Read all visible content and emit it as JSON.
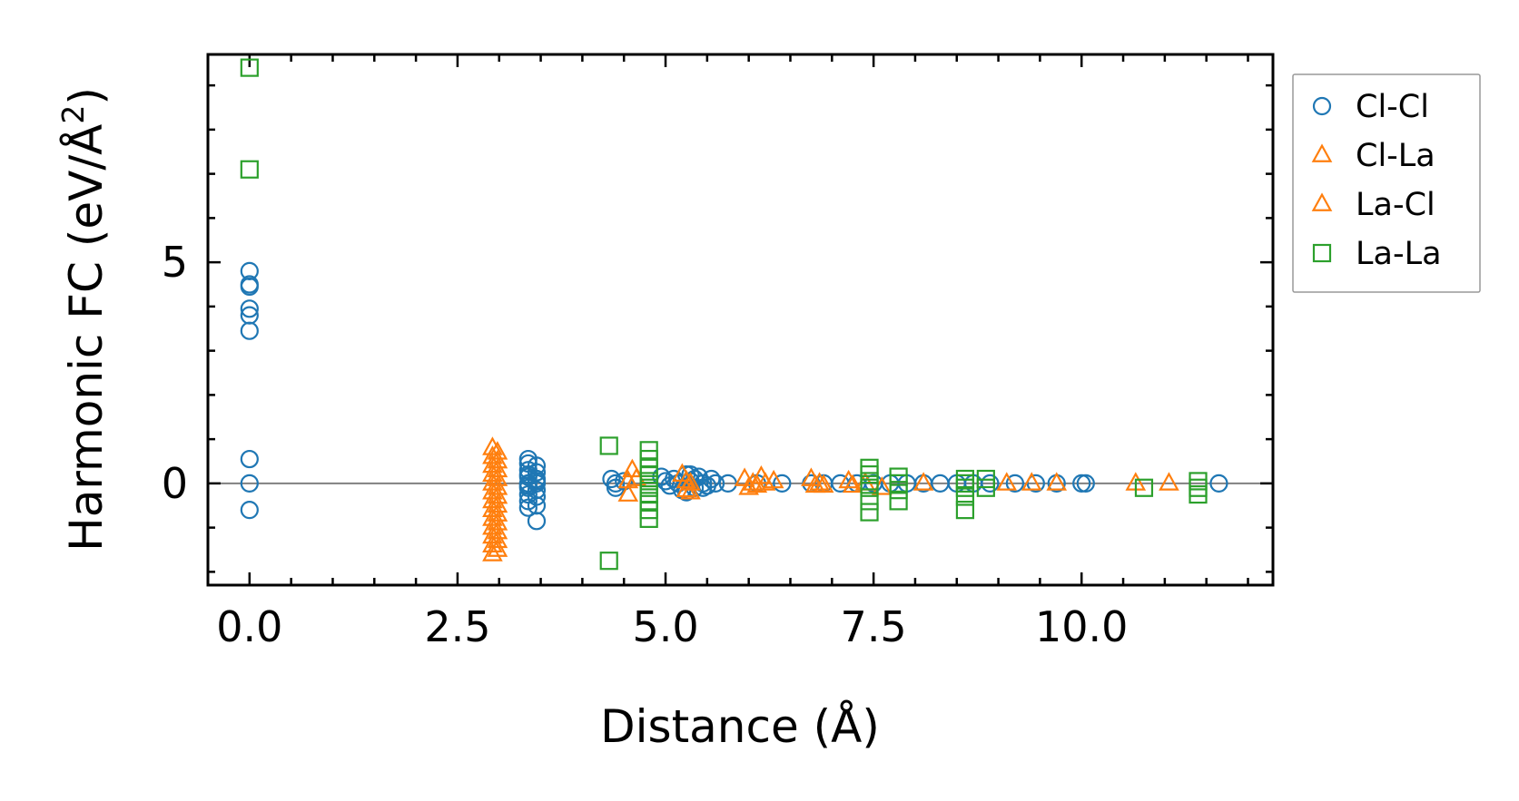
{
  "chart_data": {
    "type": "scatter",
    "title": "",
    "xlabel": "Distance (Å)",
    "ylabel_base": "Harmonic FC (eV/Å",
    "ylabel_sup": "2",
    "ylabel_close": ")",
    "xlim": [
      -0.5,
      12.3
    ],
    "ylim": [
      -2.3,
      9.7
    ],
    "x_ticks": [
      {
        "value": 0.0,
        "label": "0.0"
      },
      {
        "value": 2.5,
        "label": "2.5"
      },
      {
        "value": 5.0,
        "label": "5.0"
      },
      {
        "value": 7.5,
        "label": "7.5"
      },
      {
        "value": 10.0,
        "label": "10.0"
      }
    ],
    "y_ticks": [
      {
        "value": 0,
        "label": "0"
      },
      {
        "value": 5,
        "label": "5"
      }
    ],
    "x_minor_step": 0.5,
    "y_minor_step": 1,
    "zero_line": true,
    "grid": false,
    "legend_position": "outside-right-top",
    "series": [
      {
        "name": "Cl-Cl",
        "marker": "circle",
        "color": "#1f77b4",
        "x": [
          0,
          0,
          0,
          0,
          0,
          0,
          0,
          0,
          0,
          3.35,
          3.35,
          3.35,
          3.35,
          3.35,
          3.35,
          3.35,
          3.35,
          3.35,
          3.35,
          3.35,
          3.45,
          3.45,
          3.45,
          3.45,
          3.45,
          3.45,
          3.45,
          3.45,
          3.45,
          4.35,
          4.4,
          4.4,
          4.5,
          4.95,
          5.0,
          5.05,
          5.1,
          5.15,
          5.2,
          5.25,
          5.3,
          5.35,
          5.4,
          5.45,
          5.5,
          5.55,
          5.6,
          5.25,
          5.35,
          5.45,
          5.3,
          5.75,
          6.1,
          6.4,
          6.75,
          6.9,
          7.1,
          7.3,
          7.5,
          7.7,
          7.9,
          8.1,
          8.3,
          8.5,
          8.7,
          8.9,
          9.2,
          9.45,
          9.7,
          10.0,
          10.05,
          11.65
        ],
        "y": [
          4.8,
          4.45,
          4.5,
          3.95,
          3.8,
          3.45,
          0.55,
          0,
          -0.6,
          0.55,
          0.45,
          0.3,
          0.15,
          0,
          -0.1,
          -0.25,
          -0.4,
          -0.55,
          0.2,
          -0.05,
          0.4,
          0.25,
          0.1,
          0,
          -0.15,
          -0.3,
          -0.5,
          -0.85,
          0.05,
          0.1,
          0,
          -0.1,
          0.05,
          0.15,
          0.05,
          -0.05,
          0.1,
          0,
          -0.15,
          0.2,
          0.05,
          -0.1,
          0.15,
          0,
          -0.05,
          0.1,
          0,
          -0.2,
          0.1,
          -0.1,
          0.2,
          0,
          0,
          0,
          0,
          0,
          0,
          0,
          0,
          0,
          0,
          0,
          0,
          0,
          0,
          0,
          0,
          0,
          0,
          0,
          0,
          0
        ]
      },
      {
        "name": "Cl-La",
        "marker": "triangle",
        "color": "#ff7f0e",
        "x": [
          2.92,
          2.92,
          2.92,
          2.92,
          2.92,
          2.92,
          2.92,
          2.92,
          2.92,
          2.92,
          2.92,
          2.92,
          2.92,
          4.6,
          4.55,
          4.55,
          5.2,
          5.25,
          5.25,
          5.95,
          6.0,
          6.15,
          6.2,
          6.3,
          6.75,
          6.8,
          7.2,
          7.25,
          8.1,
          9.1,
          9.4,
          9.7,
          10.65,
          11.05
        ],
        "y": [
          0.8,
          0.6,
          0.4,
          0.2,
          0,
          -0.2,
          -0.4,
          -0.6,
          -0.8,
          -1.0,
          -1.2,
          -1.4,
          -1.6,
          0.3,
          0.05,
          -0.25,
          0.2,
          0.05,
          -0.15,
          0.1,
          -0.1,
          0.15,
          0,
          0.05,
          0.1,
          -0.05,
          0.05,
          -0.05,
          0,
          0,
          0,
          0,
          0,
          0
        ]
      },
      {
        "name": "La-Cl",
        "marker": "triangle",
        "color": "#ff7f0e",
        "x": [
          2.98,
          2.98,
          2.98,
          2.98,
          2.98,
          2.98,
          2.98,
          2.98,
          2.98,
          2.98,
          2.98,
          2.98,
          4.65,
          5.3,
          5.3,
          6.05,
          6.1,
          6.85,
          6.9,
          7.4,
          7.6
        ],
        "y": [
          0.7,
          0.5,
          0.3,
          0.1,
          -0.1,
          -0.3,
          -0.5,
          -0.7,
          -0.9,
          -1.1,
          -1.3,
          -1.5,
          0.1,
          0,
          -0.2,
          0,
          -0.05,
          0,
          -0.05,
          0,
          -0.1
        ]
      },
      {
        "name": "La-La",
        "marker": "square",
        "color": "#2ca02c",
        "x": [
          0,
          0,
          4.32,
          4.32,
          4.8,
          4.8,
          4.8,
          4.8,
          4.8,
          4.8,
          4.8,
          4.8,
          4.8,
          4.8,
          7.45,
          7.45,
          7.45,
          7.45,
          7.45,
          7.45,
          7.8,
          7.8,
          7.8,
          7.8,
          8.6,
          8.6,
          8.6,
          8.6,
          8.6,
          8.85,
          8.85,
          10.75,
          11.4,
          11.4,
          11.4
        ],
        "y": [
          9.4,
          7.1,
          0.85,
          -1.75,
          0.75,
          0.55,
          0.35,
          0.2,
          0.05,
          -0.1,
          -0.25,
          -0.4,
          -0.6,
          -0.8,
          0.35,
          0.2,
          0.05,
          -0.1,
          -0.4,
          -0.65,
          0.15,
          0,
          -0.15,
          -0.4,
          0.1,
          0,
          -0.1,
          -0.3,
          -0.6,
          0.1,
          -0.1,
          -0.1,
          0.05,
          -0.1,
          -0.25
        ]
      }
    ]
  }
}
